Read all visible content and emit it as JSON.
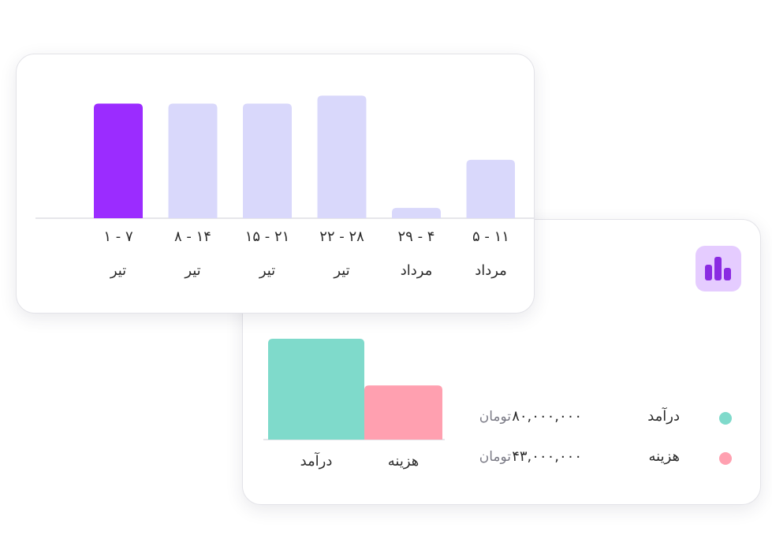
{
  "chart_data": [
    {
      "type": "bar",
      "title": "",
      "xlabel": "",
      "ylabel": "",
      "categories": [
        {
          "range": "۱ - ۷",
          "month": "تیر"
        },
        {
          "range": "۸ - ۱۴",
          "month": "تیر"
        },
        {
          "range": "۱۵ - ۲۱",
          "month": "تیر"
        },
        {
          "range": "۲۲ - ۲۸",
          "month": "تیر"
        },
        {
          "range": "۲۹ - ۴",
          "month": "مرداد"
        },
        {
          "range": "۵ - ۱۱",
          "month": "مرداد"
        }
      ],
      "values": [
        100,
        100,
        100,
        107,
        9,
        51
      ],
      "highlight_index": 0,
      "ylim": [
        0,
        110
      ],
      "grid": false,
      "colors": {
        "highlight": "#9b2cff",
        "default": "#d9d8fb",
        "axis": "#e6e6ea"
      }
    },
    {
      "type": "bar",
      "title": "",
      "categories": [
        "درآمد",
        "هزینه"
      ],
      "values": [
        80000000,
        43000000
      ],
      "ylim": [
        0,
        80000000
      ],
      "grid": false,
      "colors": [
        "#7fdacb",
        "#ffa0b0"
      ]
    }
  ],
  "summary": {
    "icon": "bar-chart-icon",
    "icon_colors": {
      "bg": "#e5ccff",
      "fg": "#8a2be2"
    },
    "legend": [
      {
        "label": "درآمد",
        "amount": "۸۰,۰۰۰,۰۰۰",
        "unit": "تومان",
        "color": "#7fdacb"
      },
      {
        "label": "هزینه",
        "amount": "۴۳,۰۰۰,۰۰۰",
        "unit": "تومان",
        "color": "#ffa0b0"
      }
    ]
  }
}
